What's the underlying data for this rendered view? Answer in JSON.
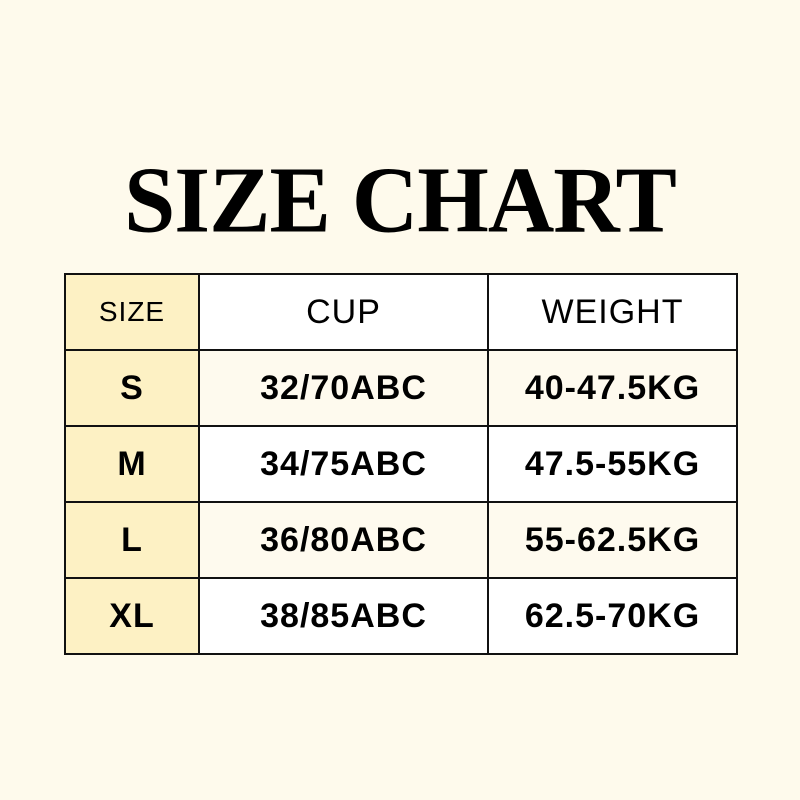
{
  "title": "SIZE CHART",
  "colors": {
    "background": "#FEFAEC",
    "size_column": "#FDF1C4",
    "border": "#111111"
  },
  "table": {
    "headers": [
      "SIZE",
      "CUP",
      "WEIGHT"
    ],
    "rows": [
      [
        "S",
        "32/70ABC",
        "40-47.5KG"
      ],
      [
        "M",
        "34/75ABC",
        "47.5-55KG"
      ],
      [
        "L",
        "36/80ABC",
        "55-62.5KG"
      ],
      [
        "XL",
        "38/85ABC",
        "62.5-70KG"
      ]
    ]
  }
}
